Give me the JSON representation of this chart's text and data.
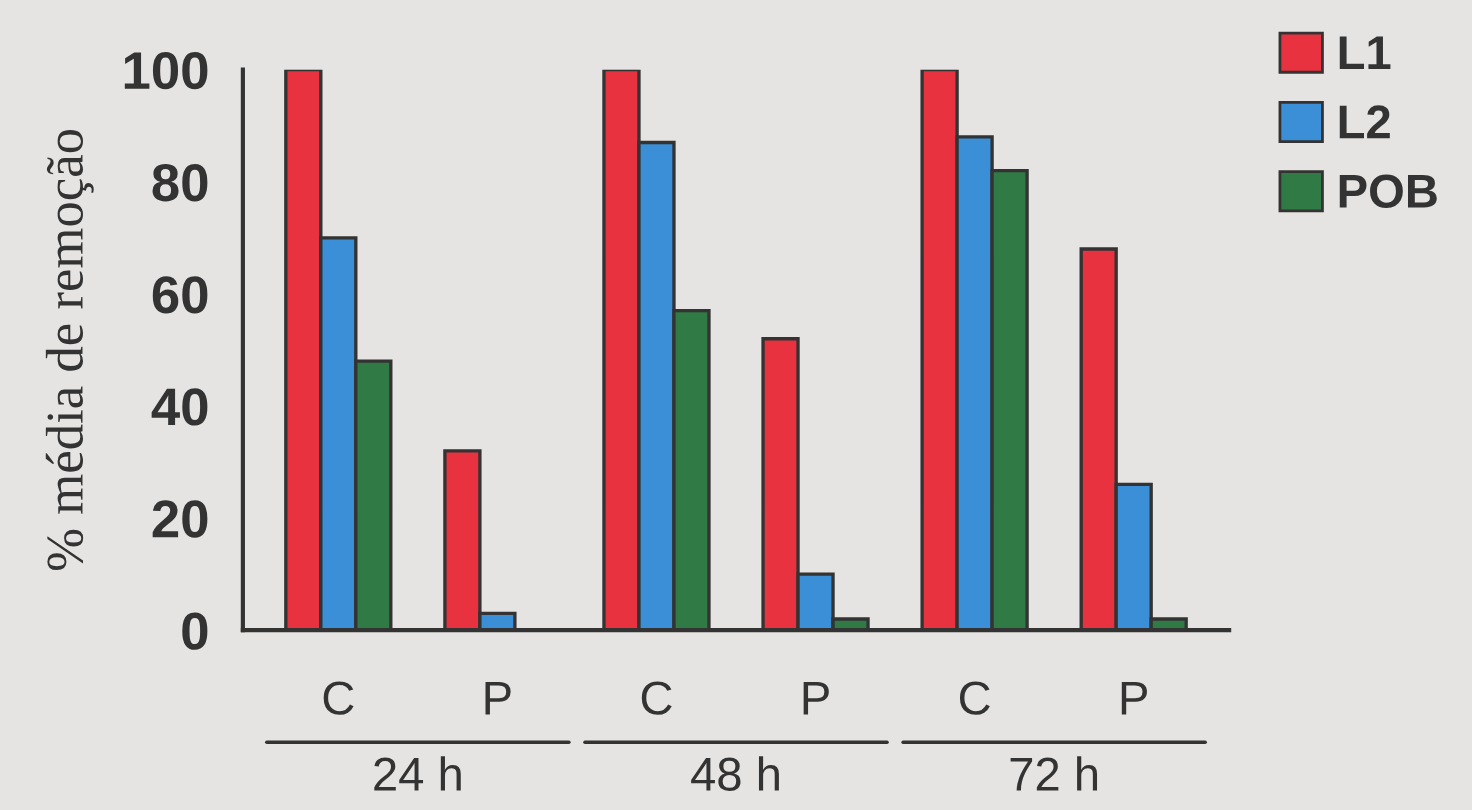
{
  "chart_data": {
    "type": "bar",
    "ylabel": "% média de remoção",
    "categories": [
      "C",
      "P",
      "C",
      "P",
      "C",
      "P"
    ],
    "series": [
      {
        "name": "L1",
        "color": "#e8323f",
        "values": [
          100,
          32,
          100,
          52,
          100,
          68
        ]
      },
      {
        "name": "L2",
        "color": "#3b8fd6",
        "values": [
          70,
          3,
          87,
          10,
          88,
          26
        ]
      },
      {
        "name": "POB",
        "color": "#2f7a45",
        "values": [
          48,
          null,
          57,
          2,
          82,
          2
        ]
      }
    ],
    "ylim": [
      0,
      100
    ],
    "yticks": [
      0,
      20,
      40,
      60,
      80,
      100
    ],
    "annotations": [
      "24 h",
      "48 h",
      "72 h"
    ],
    "grid": false,
    "legend": "top right"
  }
}
